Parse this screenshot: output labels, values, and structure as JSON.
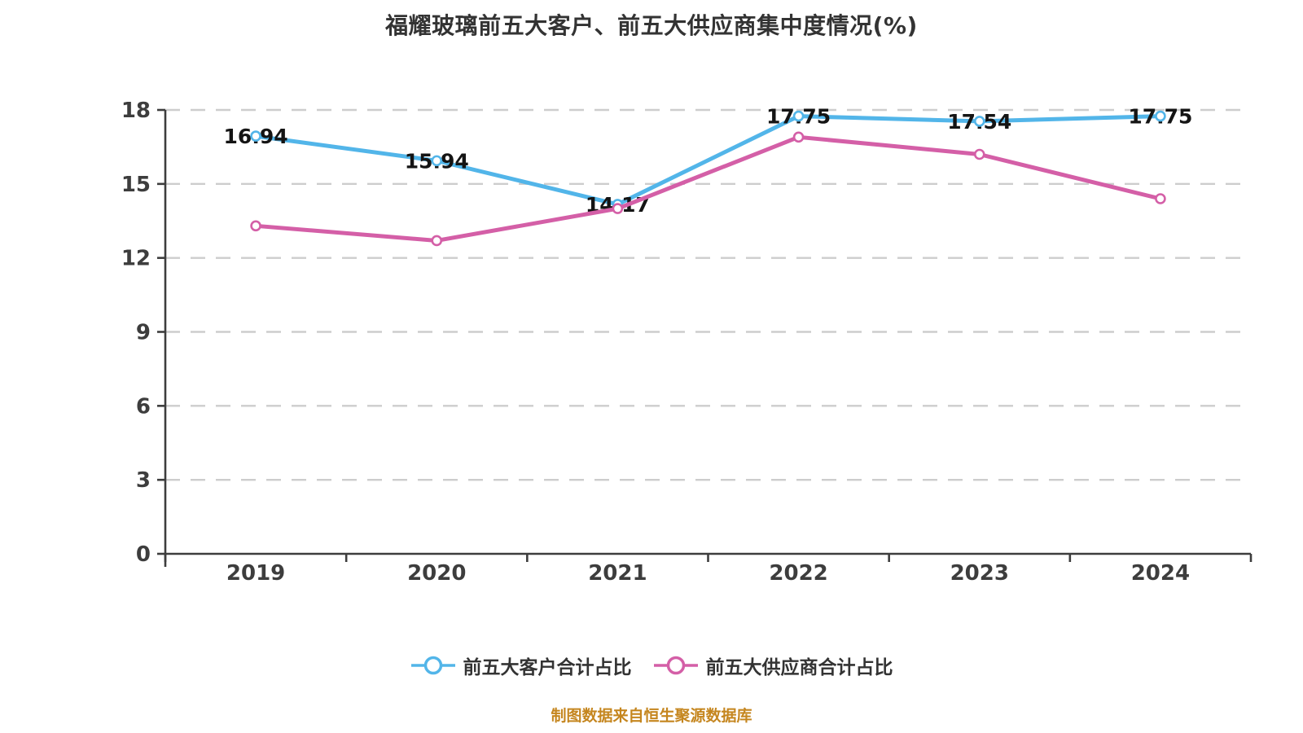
{
  "title": "福耀玻璃前五大客户、前五大供应商集中度情况(%)",
  "source_note": "制图数据来自恒生聚源数据库",
  "colors": {
    "grid": "#cdcdcd",
    "axis": "#3d3d3d",
    "tick_text": "#3d3d3d",
    "title_text": "#333333",
    "label_text": "#141414",
    "legend_text": "#333333",
    "source_text": "#c5861f"
  },
  "chart_data": {
    "type": "line",
    "title": "福耀玻璃前五大客户、前五大供应商集中度情况(%)",
    "categories": [
      "2019",
      "2020",
      "2021",
      "2022",
      "2023",
      "2024"
    ],
    "series": [
      {
        "name": "前五大客户合计占比",
        "color": "#52b5e9",
        "values": [
          16.94,
          15.94,
          14.17,
          17.75,
          17.54,
          17.75
        ],
        "show_labels": true
      },
      {
        "name": "前五大供应商合计占比",
        "color": "#d45fa7",
        "values": [
          13.3,
          12.7,
          14.0,
          16.9,
          16.2,
          14.4
        ],
        "show_labels": false
      }
    ],
    "xlabel": "",
    "ylabel": "",
    "ylim": [
      0,
      18
    ],
    "yticks": [
      0,
      3,
      6,
      9,
      12,
      15,
      18
    ],
    "grid": "horizontal-dashed",
    "legend_position": "bottom"
  }
}
